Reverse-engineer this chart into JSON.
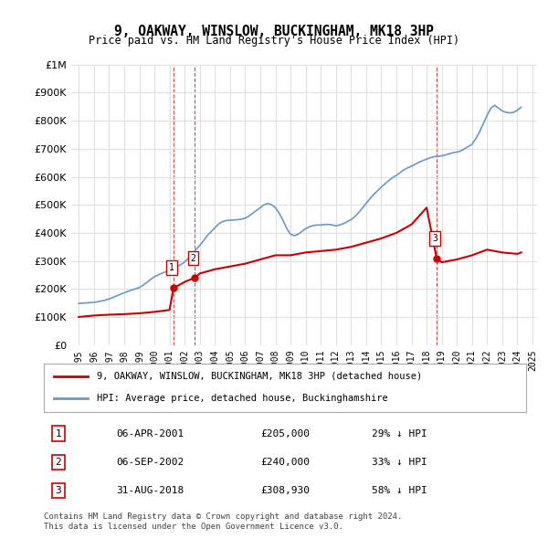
{
  "title": "9, OAKWAY, WINSLOW, BUCKINGHAM, MK18 3HP",
  "subtitle": "Price paid vs. HM Land Registry's House Price Index (HPI)",
  "ylabel_values": [
    "£0",
    "£100K",
    "£200K",
    "£300K",
    "£400K",
    "£500K",
    "£600K",
    "£700K",
    "£800K",
    "£900K",
    "£1M"
  ],
  "ylim": [
    0,
    1000000
  ],
  "yticks": [
    0,
    100000,
    200000,
    300000,
    400000,
    500000,
    600000,
    700000,
    800000,
    900000,
    1000000
  ],
  "legend_line1": "9, OAKWAY, WINSLOW, BUCKINGHAM, MK18 3HP (detached house)",
  "legend_line2": "HPI: Average price, detached house, Buckinghamshire",
  "transactions": [
    {
      "num": 1,
      "date": "06-APR-2001",
      "price": 205000,
      "pct": "29%",
      "dir": "↓",
      "x": 2001.27
    },
    {
      "num": 2,
      "date": "06-SEP-2002",
      "price": 240000,
      "pct": "33%",
      "dir": "↓",
      "x": 2002.68
    },
    {
      "num": 3,
      "date": "31-AUG-2018",
      "price": 308930,
      "pct": "58%",
      "dir": "↓",
      "x": 2018.66
    }
  ],
  "footnote1": "Contains HM Land Registry data © Crown copyright and database right 2024.",
  "footnote2": "This data is licensed under the Open Government Licence v3.0.",
  "bg_color": "#ffffff",
  "plot_bg_color": "#ffffff",
  "grid_color": "#e0e0e0",
  "hpi_color": "#6699cc",
  "price_color": "#cc0000",
  "marker_color": "#cc0000",
  "vline_color": "#cc0000",
  "hpi_data": {
    "years": [
      1995.0,
      1995.25,
      1995.5,
      1995.75,
      1996.0,
      1996.25,
      1996.5,
      1996.75,
      1997.0,
      1997.25,
      1997.5,
      1997.75,
      1998.0,
      1998.25,
      1998.5,
      1998.75,
      1999.0,
      1999.25,
      1999.5,
      1999.75,
      2000.0,
      2000.25,
      2000.5,
      2000.75,
      2001.0,
      2001.25,
      2001.5,
      2001.75,
      2002.0,
      2002.25,
      2002.5,
      2002.75,
      2003.0,
      2003.25,
      2003.5,
      2003.75,
      2004.0,
      2004.25,
      2004.5,
      2004.75,
      2005.0,
      2005.25,
      2005.5,
      2005.75,
      2006.0,
      2006.25,
      2006.5,
      2006.75,
      2007.0,
      2007.25,
      2007.5,
      2007.75,
      2008.0,
      2008.25,
      2008.5,
      2008.75,
      2009.0,
      2009.25,
      2009.5,
      2009.75,
      2010.0,
      2010.25,
      2010.5,
      2010.75,
      2011.0,
      2011.25,
      2011.5,
      2011.75,
      2012.0,
      2012.25,
      2012.5,
      2012.75,
      2013.0,
      2013.25,
      2013.5,
      2013.75,
      2014.0,
      2014.25,
      2014.5,
      2014.75,
      2015.0,
      2015.25,
      2015.5,
      2015.75,
      2016.0,
      2016.25,
      2016.5,
      2016.75,
      2017.0,
      2017.25,
      2017.5,
      2017.75,
      2018.0,
      2018.25,
      2018.5,
      2018.75,
      2019.0,
      2019.25,
      2019.5,
      2019.75,
      2020.0,
      2020.25,
      2020.5,
      2020.75,
      2021.0,
      2021.25,
      2021.5,
      2021.75,
      2022.0,
      2022.25,
      2022.5,
      2022.75,
      2023.0,
      2023.25,
      2023.5,
      2023.75,
      2024.0,
      2024.25
    ],
    "values": [
      148000,
      149000,
      150000,
      151000,
      152000,
      154000,
      157000,
      160000,
      164000,
      169000,
      175000,
      181000,
      186000,
      191000,
      196000,
      200000,
      205000,
      213000,
      223000,
      234000,
      243000,
      250000,
      256000,
      261000,
      266000,
      272000,
      279000,
      287000,
      296000,
      310000,
      326000,
      341000,
      355000,
      372000,
      391000,
      404000,
      418000,
      432000,
      440000,
      444000,
      445000,
      446000,
      447000,
      449000,
      452000,
      460000,
      470000,
      480000,
      490000,
      500000,
      505000,
      500000,
      490000,
      470000,
      445000,
      415000,
      395000,
      390000,
      395000,
      405000,
      415000,
      422000,
      426000,
      428000,
      428000,
      430000,
      430000,
      428000,
      425000,
      428000,
      433000,
      440000,
      447000,
      458000,
      472000,
      488000,
      505000,
      522000,
      537000,
      550000,
      563000,
      575000,
      587000,
      597000,
      605000,
      615000,
      625000,
      632000,
      638000,
      645000,
      652000,
      658000,
      663000,
      668000,
      672000,
      673000,
      675000,
      678000,
      682000,
      686000,
      688000,
      692000,
      700000,
      708000,
      716000,
      736000,
      760000,
      790000,
      820000,
      845000,
      855000,
      845000,
      835000,
      830000,
      828000,
      830000,
      838000,
      848000
    ]
  },
  "price_data": {
    "years": [
      2001.27,
      2002.68,
      2018.66
    ],
    "values": [
      205000,
      240000,
      308930
    ]
  },
  "price_line_segments": [
    {
      "x": [
        1995.0,
        2001.27
      ],
      "y": [
        100000,
        205000
      ]
    },
    {
      "x": [
        2001.27,
        2002.68
      ],
      "y": [
        205000,
        240000
      ]
    },
    {
      "x": [
        2002.68,
        2018.0
      ],
      "y": [
        240000,
        490000
      ]
    },
    {
      "x": [
        2018.0,
        2018.66
      ],
      "y": [
        490000,
        308930
      ]
    },
    {
      "x": [
        2018.66,
        2024.25
      ],
      "y": [
        308930,
        330000
      ]
    }
  ]
}
